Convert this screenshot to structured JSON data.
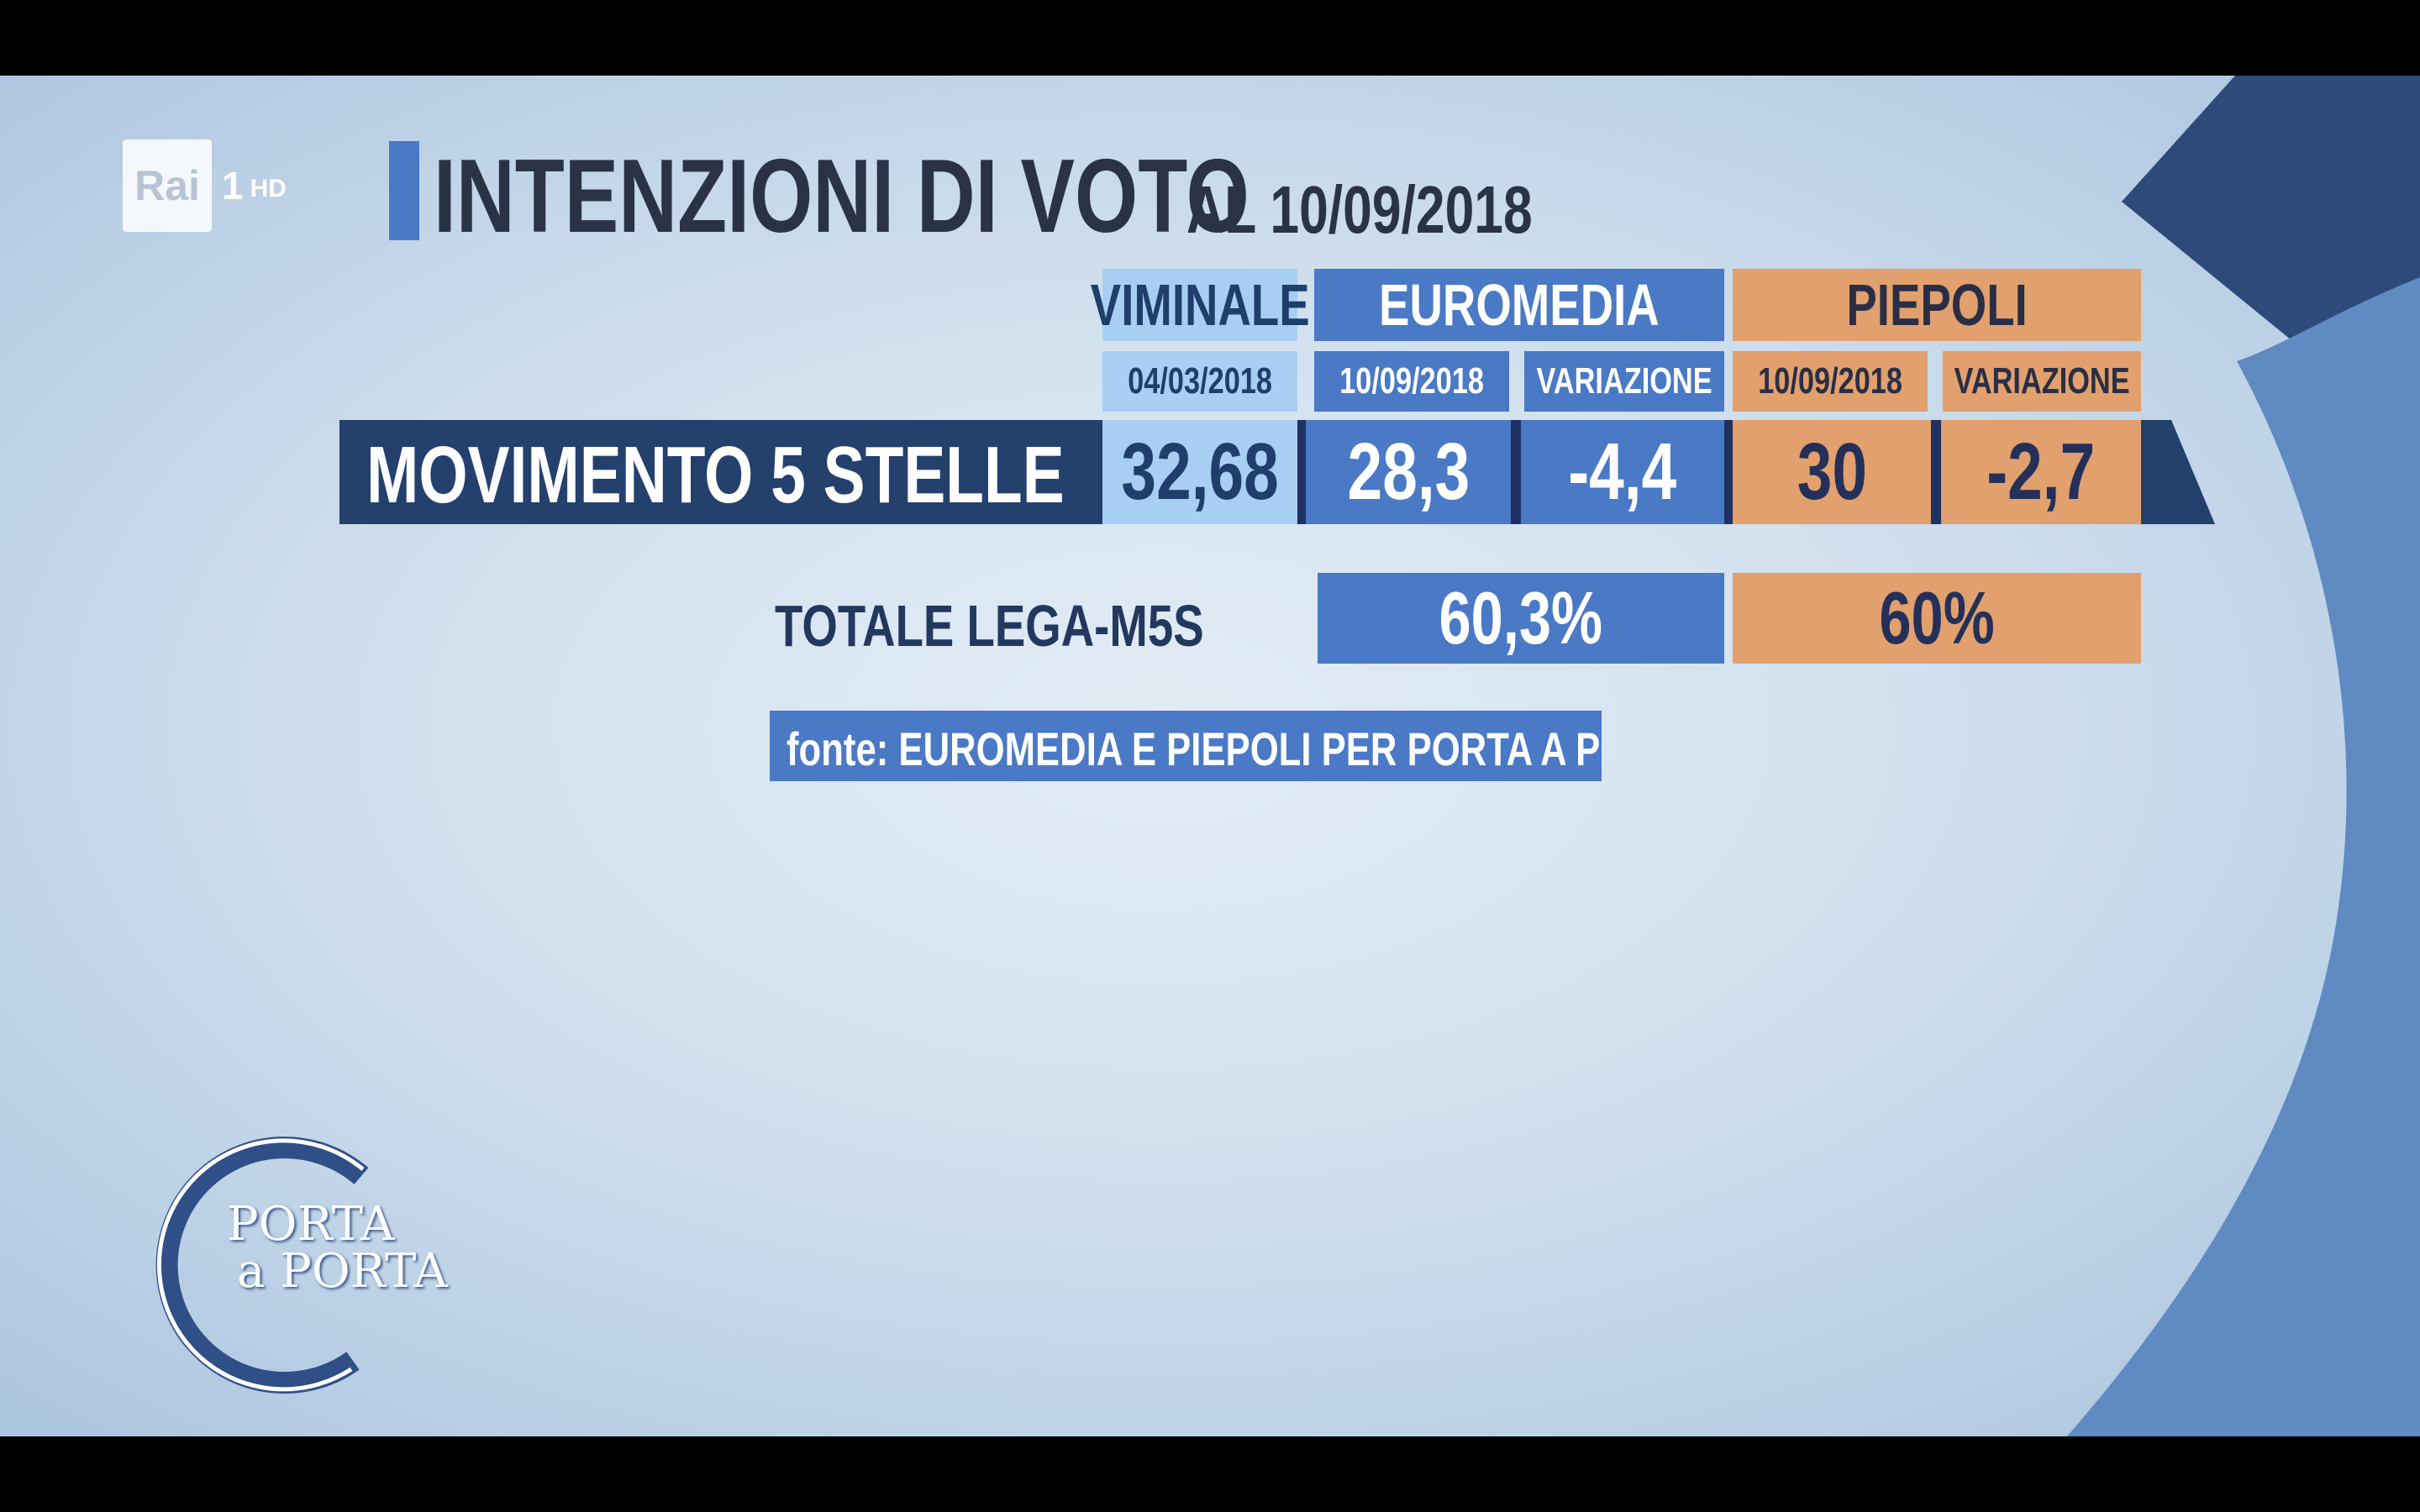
{
  "channel": {
    "name": "Rai",
    "number": "1",
    "quality": "HD"
  },
  "title": {
    "main": "INTENZIONI DI VOTO",
    "date": "AL 10/09/2018"
  },
  "headers": {
    "viminale": {
      "label": "VIMINALE",
      "date": "04/03/2018"
    },
    "euromedia": {
      "label": "EUROMEDIA",
      "date": "10/09/2018",
      "variation": "VARIAZIONE"
    },
    "piepoli": {
      "label": "PIEPOLI",
      "date": "10/09/2018",
      "variation": "VARIAZIONE"
    }
  },
  "row": {
    "party": "MOVIMENTO 5 STELLE",
    "viminale": "32,68",
    "euromedia": "28,3",
    "euromedia_var": "-4,4",
    "piepoli": "30",
    "piepoli_var": "-2,7"
  },
  "total": {
    "label": "TOTALE LEGA-M5S",
    "euromedia": "60,3%",
    "piepoli": "60%"
  },
  "source": "fonte: EUROMEDIA E PIEPOLI PER PORTA A PORTA",
  "show_logo": {
    "line1": "PORTA",
    "line2": "a PORTA"
  },
  "colors": {
    "navy": "#24406d",
    "blue": "#4a79c5",
    "light_blue": "#a9cef3",
    "orange": "#e1a06d",
    "background": "#d4e2ef"
  }
}
